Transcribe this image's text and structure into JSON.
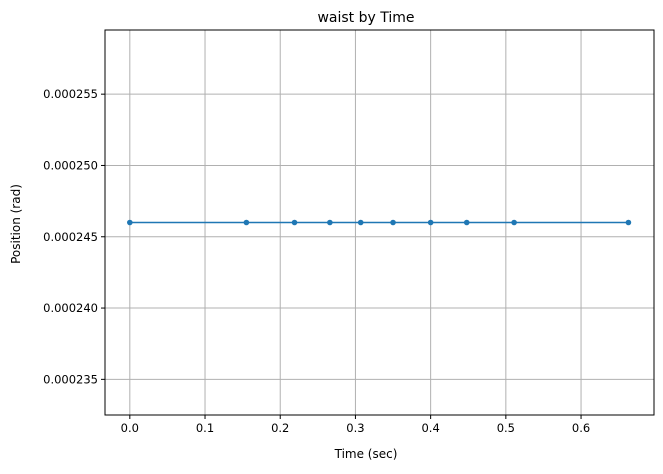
{
  "chart_data": {
    "type": "line",
    "title": "waist by Time",
    "xlabel": "Time (sec)",
    "ylabel": "Position (rad)",
    "xlim": [
      -0.033,
      0.697
    ],
    "ylim": [
      0.0002325,
      0.0002595
    ],
    "xticks": [
      0.0,
      0.1,
      0.2,
      0.3,
      0.4,
      0.5,
      0.6
    ],
    "xtick_labels": [
      "0.0",
      "0.1",
      "0.2",
      "0.3",
      "0.4",
      "0.5",
      "0.6"
    ],
    "yticks": [
      0.000235,
      0.00024,
      0.000245,
      0.00025,
      0.000255
    ],
    "ytick_labels": [
      "0.000235",
      "0.000240",
      "0.000245",
      "0.000250",
      "0.000255"
    ],
    "grid": true,
    "series": [
      {
        "color": "#1f77b4",
        "x": [
          0.0,
          0.155,
          0.219,
          0.266,
          0.307,
          0.35,
          0.4,
          0.448,
          0.511,
          0.663
        ],
        "y": [
          0.000246,
          0.000246,
          0.000246,
          0.000246,
          0.000246,
          0.000246,
          0.000246,
          0.000246,
          0.000246,
          0.000246
        ]
      }
    ]
  }
}
